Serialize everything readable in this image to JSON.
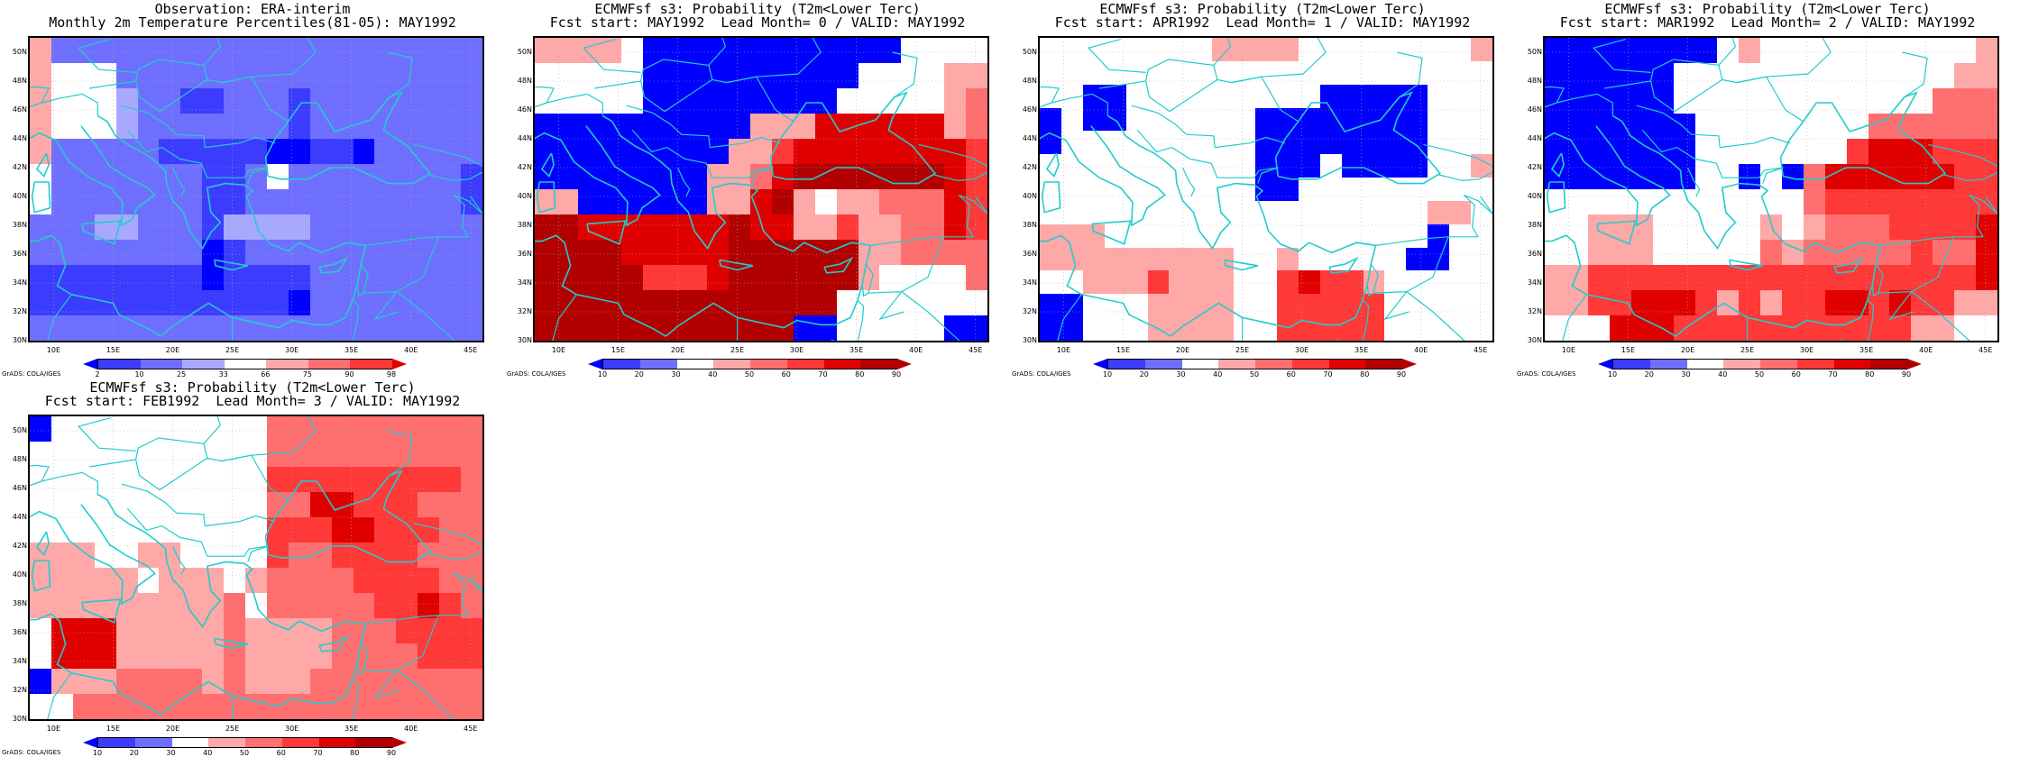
{
  "colors": {
    "b3": "#0000ff",
    "b2": "#3c3cff",
    "b1": "#6f6fff",
    "b0": "#a8a8ff",
    "w": "#ffffff",
    "r1": "#ffa8a8",
    "r2": "#ff6f6f",
    "r3": "#ff3838",
    "r4": "#e00000",
    "r5": "#b20000",
    "coast": "#22cccc"
  },
  "lat_labels": [
    "50N",
    "48N",
    "46N",
    "44N",
    "42N",
    "40N",
    "38N",
    "36N",
    "34N",
    "32N",
    "30N"
  ],
  "lon_labels": [
    "10E",
    "15E",
    "20E",
    "25E",
    "30E",
    "35E",
    "40E",
    "45E"
  ],
  "grads_note": "GrADS: COLA/IGES",
  "panels": [
    {
      "title_line1": "Observation: ERA-interim",
      "title_line2": "Monthly 2m Temperature Percentiles(81-05): MAY1992",
      "colorbar_ticks": [
        "2",
        "10",
        "25",
        "33",
        "66",
        "75",
        "90",
        "98"
      ],
      "colorbar_keys": [
        "b3",
        "b2",
        "b1",
        "b0",
        "w",
        "r1",
        "r2",
        "r3",
        "r4"
      ],
      "grid": [
        "r1 b1 b1 b1 b1 b1 b1 b1 b1 b1 b1 b1 b1 b1 b1 b1 b1 b1 b1 b1 b1",
        "r1 w w w b1 b1 b1 b1 b1 b1 b1 b1 b1 b1 b1 b1 b1 b1 b1 b1 b1",
        "r1 w w w b0 b1 b1 b2 b2 b1 b1 b1 b2 b1 b1 b1 b1 b1 b1 b1 b1",
        "r1 w w w b0 b1 b1 b1 b1 b1 b1 b1 b2 b1 b1 b1 b1 b1 b1 b1 b1",
        "r1 b1 b1 b1 b1 b1 b2 b2 b2 b2 b2 b3 b3 b2 b2 b3 b1 b1 b1 b1 b1",
        "w b1 b1 b1 b1 b1 b1 b1 b2 b2 b1 w b1 b1 b1 b1 b1 b1 b1 b1 b2",
        "w b1 b1 b1 b1 b1 b1 b1 b2 b2 b1 b1 b1 b1 b1 b1 b1 b1 b1 b1 b2",
        "b1 b1 b1 b0 b0 b1 b1 b1 b2 b0 b0 b0 b0 b1 b1 b1 b1 b1 b1 b1 b1",
        "b1 b1 b1 b1 b1 b1 b1 b1 b3 b2 b1 b1 b1 b1 b1 b1 b1 b1 b1 b1 b1",
        "b2 b2 b2 b2 b2 b2 b2 b2 b3 b2 b2 b2 b2 b1 b1 b1 b1 b1 b1 b1 b1",
        "b2 b2 b2 b2 b2 b2 b2 b2 b2 b2 b2 b2 b3 b1 b1 b1 b1 b1 b1 b1 b1",
        "b1 b1 b1 b1 b1 b1 b1 b1 b1 b1 b1 b1 b1 b1 b1 b1 b1 b1 b1 b1 b1"
      ]
    },
    {
      "title_line1": "ECMWFsf s3: Probability (T2m<Lower Terc)",
      "title_line2": "Fcst start: MAY1992  Lead Month= 0 / VALID: MAY1992",
      "colorbar_ticks": [
        "10",
        "20",
        "30",
        "40",
        "50",
        "60",
        "70",
        "80",
        "90"
      ],
      "colorbar_keys": [
        "b3",
        "b2",
        "b1",
        "w",
        "r1",
        "r2",
        "r3",
        "r4",
        "r5",
        "r5"
      ],
      "grid": [
        "r1 r1 r1 r1 w b3 b3 b3 b3 b3 b3 b3 b3 b3 b3 b3 b3 w w w w",
        "w w w w w b3 b3 b3 b3 b3 b3 b3 b3 b3 b3 w w w w r1 r1",
        "w w w w w b3 b3 b3 b3 b3 b3 b3 b3 b3 w w w w w r1 r2",
        "b3 b3 b3 b3 b3 b3 b3 b3 b3 b3 r1 r1 r1 r4 r4 r4 r4 r4 r4 r1 r2",
        "b3 b3 b3 b3 b3 b3 b3 b3 b3 r1 r1 r3 r4 r4 r4 r4 r4 r4 r4 r4 r3",
        "b3 b3 b3 b3 b3 b3 b3 b3 r1 r1 r2 r4 r5 r5 r5 r5 r5 r5 r5 r4 r3",
        "r1 r1 b3 b3 b3 b3 b3 b3 r1 r1 r4 r5 r1 w r1 r1 r2 r2 r2 r4 r3",
        "r5 r5 r4 r4 r4 r4 r4 r4 r4 r5 r4 r4 r1 r1 r3 r1 r1 r2 r2 r4 r3",
        "r5 r5 r5 r5 r4 r4 r4 r4 r4 r5 r5 r5 r5 r5 r5 r1 r1 r2 r2 r2 r2",
        "r5 r5 r5 r5 r5 r3 r3 r3 r4 r5 r5 r5 r5 r5 r5 r1 w w w w r2",
        "r5 r5 r5 r5 r5 r5 r5 r5 r5 r5 r5 r5 r5 r5 w w w w w w w",
        "r5 r5 r5 r5 r5 r5 r5 r5 r5 r5 r5 r5 b3 b3 w w w w w b3 b3"
      ]
    },
    {
      "title_line1": "ECMWFsf s3: Probability (T2m<Lower Terc)",
      "title_line2": "Fcst start: APR1992  Lead Month= 1 / VALID: MAY1992",
      "colorbar_ticks": [
        "10",
        "20",
        "30",
        "40",
        "50",
        "60",
        "70",
        "80",
        "90"
      ],
      "colorbar_keys": [
        "b3",
        "b2",
        "b1",
        "w",
        "r1",
        "r2",
        "r3",
        "r4",
        "r5",
        "r5"
      ],
      "grid": [
        "w w w w w w w w r1 r1 r1 r1 w w w w w w w w r1",
        "w w w w w w w w w w w w w w w w w w w w w",
        "w w b3 b3 w w w w w w w w w b3 b3 b3 b3 b3 w w w",
        "b3 w b3 b3 w w w w w w b3 b3 b3 b3 b3 b3 b3 b3 w w w",
        "b3 w w w w w w w w w b3 b3 b3 b3 b3 b3 b3 b3 w w w",
        "w w w w w w w w w w b3 b3 b3 w b3 b3 b3 b3 w w r1",
        "w w w w w w w w w w b3 b3 w w w w w w w w w",
        "w w w w w w w w w w w w w w w w w w r1 r1 w",
        "r1 r1 r1 w w w w w w w w w w w w w w w b3 w w",
        "r1 r1 r1 r1 r1 r1 r1 r1 r1 w w r1 w w w w w b3 b3 w w",
        "w w r1 r1 r1 r3 r1 r1 r1 w w r3 r4 r3 r3 r1 w w w w w",
        "b3 b3 w w w r1 r1 r1 r1 w w r3 r3 r3 r3 r3 w w w w w",
        "b3 b3 w w w r1 r1 r1 r1 w w r3 r3 r3 r3 r3 w w w w w"
      ]
    },
    {
      "title_line1": "ECMWFsf s3: Probability (T2m<Lower Terc)",
      "title_line2": "Fcst start: MAR1992  Lead Month= 2 / VALID: MAY1992",
      "colorbar_ticks": [
        "10",
        "20",
        "30",
        "40",
        "50",
        "60",
        "70",
        "80",
        "90"
      ],
      "colorbar_keys": [
        "b3",
        "b2",
        "b1",
        "w",
        "r1",
        "r2",
        "r3",
        "r4",
        "r5",
        "r5"
      ],
      "grid": [
        "b3 b3 b3 b3 b3 b3 b3 b3 w r1 w w w w w w w w w w r1",
        "b3 b3 b3 b3 b3 b3 w w w w w w w w w w w w w r1 r1",
        "b3 b3 b3 b3 b3 b3 w w w w w w w w w w w w r2 r2 r2",
        "b3 b3 b3 b3 b3 b3 b3 w w w w w w w w r2 r2 r2 r2 r2 r2",
        "b3 b3 b3 b3 b3 b3 b3 w w w w w w w r3 r4 r4 r4 r3 r3 r3",
        "b3 b3 b3 b3 b3 b3 b3 w w b3 w b3 r2 r4 r4 r4 r4 r4 r4 r3 r3",
        "w w w w w w w w w w w w r2 r3 r3 r3 r3 r3 r3 r3 r3",
        "w w r1 r1 r1 w w w w w r1 w r1 r2 r2 r2 r3 r3 r3 r3 r4",
        "w w r1 r1 r1 w w w w w r2 r1 r2 r2 r2 r2 r2 r3 r2 r2 r4",
        "r1 r1 r3 r3 r3 r3 r3 r3 r3 r3 r3 r3 r3 r3 r3 r3 r3 r3 r3 r3 r4",
        "r1 r1 r3 r3 r4 r4 r4 r3 r1 r3 r1 r3 r3 r4 r4 r3 r4 r3 r3 r1 r1",
        "w w w r4 r4 r4 r3 r3 r3 r3 r3 r3 r3 r3 r3 r3 r3 r1 r1 w w"
      ]
    },
    {
      "title_line1": "ECMWFsf s3: Probability (T2m<Lower Terc)",
      "title_line2": "Fcst start: FEB1992  Lead Month= 3 / VALID: MAY1992",
      "colorbar_ticks": [
        "10",
        "20",
        "30",
        "40",
        "50",
        "60",
        "70",
        "80",
        "90"
      ],
      "colorbar_keys": [
        "b3",
        "b2",
        "b1",
        "w",
        "r1",
        "r2",
        "r3",
        "r4",
        "r5",
        "r5"
      ],
      "grid": [
        "b3 w w w w w w w w w w r2 r2 r2 r2 r2 r2 r2 r2 r2 r2",
        "w w w w w w w w w w w r2 r2 r2 r2 r2 r2 r2 r2 r2 r2",
        "w w w w w w w w w w w r3 r3 r3 r3 r3 r3 r3 r3 r3 r2",
        "w w w w w w w w w w w r2 r2 r4 r4 r3 r3 r3 r2 r2 r2",
        "w w w w w w w w w w w r3 r3 r3 r4 r4 r3 r3 r3 r2 r2",
        "r1 r1 r1 w w r1 r1 w w w w r3 r2 r2 r3 r3 r3 r3 r2 r2 r2",
        "r1 r1 r1 r1 r1 w r1 r1 r1 w r1 r2 r2 r2 r2 r3 r3 r3 r3 r2 r2",
        "r1 r1 r1 r1 r1 r1 r1 r1 r1 r2 w r2 r2 r2 r2 r2 r3 r3 r4 r3 r2",
        "w r4 r4 r4 r1 r1 r1 r1 r1 r2 r1 r1 r1 r1 r2 r2 r2 r3 r3 r3 r3",
        "w r4 r4 r4 r1 r1 r1 r1 r1 r2 r1 r1 r1 r1 r2 r2 r2 r2 r3 r3 r3",
        "b3 r1 r1 r1 r2 r2 r2 r2 r1 r2 r1 r1 r1 r2 r2 r2 r2 r2 r2 r2 r2",
        "w w r2 r2 r2 r2 r2 r2 r2 r2 r2 r2 r2 r2 r2 r2 r2 r2 r2 r2 r2"
      ]
    }
  ]
}
